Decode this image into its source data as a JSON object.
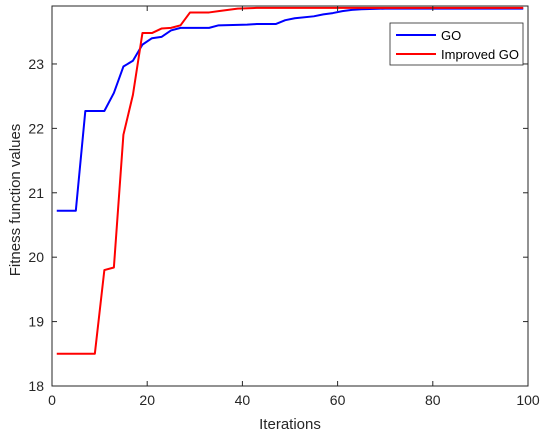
{
  "chart_data": {
    "type": "line",
    "xlabel": "Iterations",
    "ylabel": "Fitness function values",
    "xlim": [
      0,
      100
    ],
    "ylim": [
      18,
      23.9
    ],
    "xticks": [
      0,
      20,
      40,
      60,
      80,
      100
    ],
    "yticks": [
      18,
      19,
      20,
      21,
      22,
      23
    ],
    "grid": false,
    "legend": "top-right",
    "series": [
      {
        "name": "GO",
        "color": "#0000ff",
        "points": [
          [
            1,
            20.72
          ],
          [
            5,
            20.72
          ],
          [
            7,
            22.27
          ],
          [
            11,
            22.27
          ],
          [
            13,
            22.55
          ],
          [
            15,
            22.96
          ],
          [
            17,
            23.05
          ],
          [
            19,
            23.3
          ],
          [
            21,
            23.4
          ],
          [
            23,
            23.42
          ],
          [
            25,
            23.52
          ],
          [
            27,
            23.56
          ],
          [
            29,
            23.56
          ],
          [
            33,
            23.56
          ],
          [
            35,
            23.6
          ],
          [
            41,
            23.61
          ],
          [
            43,
            23.62
          ],
          [
            47,
            23.62
          ],
          [
            49,
            23.68
          ],
          [
            51,
            23.71
          ],
          [
            55,
            23.74
          ],
          [
            57,
            23.77
          ],
          [
            59,
            23.79
          ],
          [
            61,
            23.82
          ],
          [
            63,
            23.84
          ],
          [
            65,
            23.85
          ],
          [
            70,
            23.86
          ],
          [
            80,
            23.86
          ],
          [
            90,
            23.86
          ],
          [
            99,
            23.86
          ]
        ]
      },
      {
        "name": "Improved GO",
        "color": "#ff0000",
        "points": [
          [
            1,
            18.5
          ],
          [
            9,
            18.5
          ],
          [
            11,
            19.8
          ],
          [
            13,
            19.84
          ],
          [
            15,
            21.9
          ],
          [
            17,
            22.52
          ],
          [
            19,
            23.48
          ],
          [
            21,
            23.48
          ],
          [
            23,
            23.55
          ],
          [
            25,
            23.56
          ],
          [
            27,
            23.6
          ],
          [
            29,
            23.8
          ],
          [
            33,
            23.8
          ],
          [
            35,
            23.82
          ],
          [
            37,
            23.84
          ],
          [
            39,
            23.86
          ],
          [
            43,
            23.87
          ],
          [
            50,
            23.87
          ],
          [
            60,
            23.87
          ],
          [
            70,
            23.87
          ],
          [
            80,
            23.87
          ],
          [
            90,
            23.87
          ],
          [
            99,
            23.87
          ]
        ]
      }
    ]
  }
}
